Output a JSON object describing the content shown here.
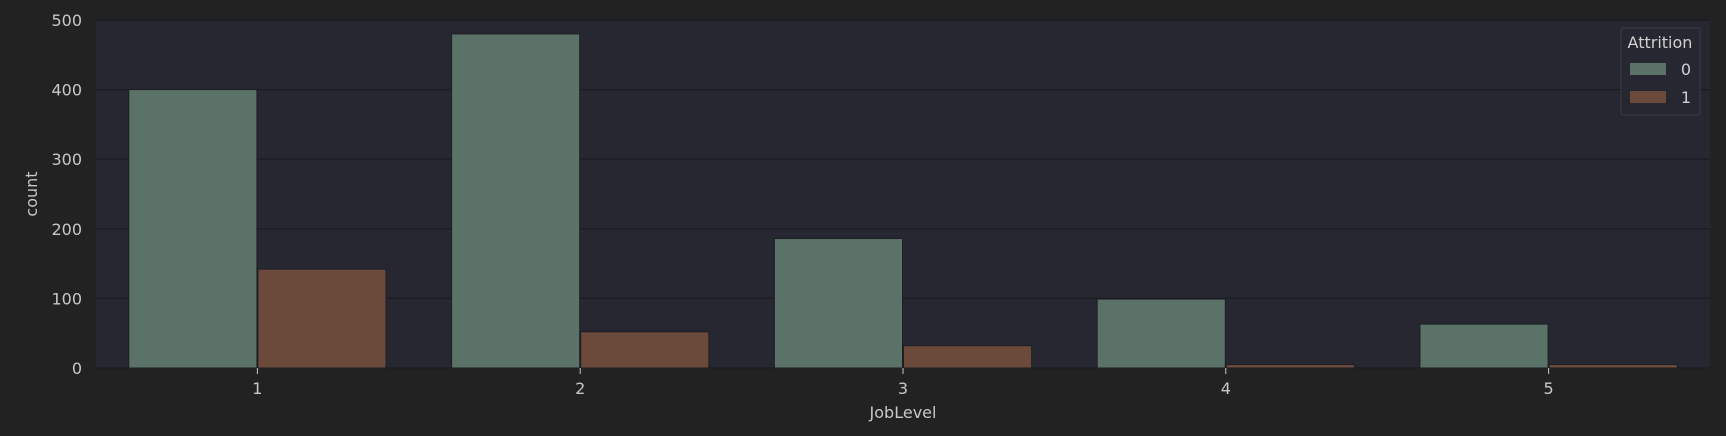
{
  "chart_data": {
    "type": "bar",
    "categories": [
      "1",
      "2",
      "3",
      "4",
      "5"
    ],
    "series": [
      {
        "name": "0",
        "values": [
          400,
          480,
          186,
          99,
          63
        ],
        "color": "#5a7268"
      },
      {
        "name": "1",
        "values": [
          142,
          52,
          32,
          5,
          5
        ],
        "color": "#6b4a3c"
      }
    ],
    "xlabel": "JobLevel",
    "ylabel": "count",
    "ylim": [
      0,
      500
    ],
    "yticks": [
      0,
      100,
      200,
      300,
      400,
      500
    ],
    "grid": true,
    "legend": {
      "title": "Attrition",
      "placement": "top-right"
    },
    "colors": {
      "background": "#222222",
      "plot_background": "#262730",
      "grid": "#1b1c22"
    }
  }
}
